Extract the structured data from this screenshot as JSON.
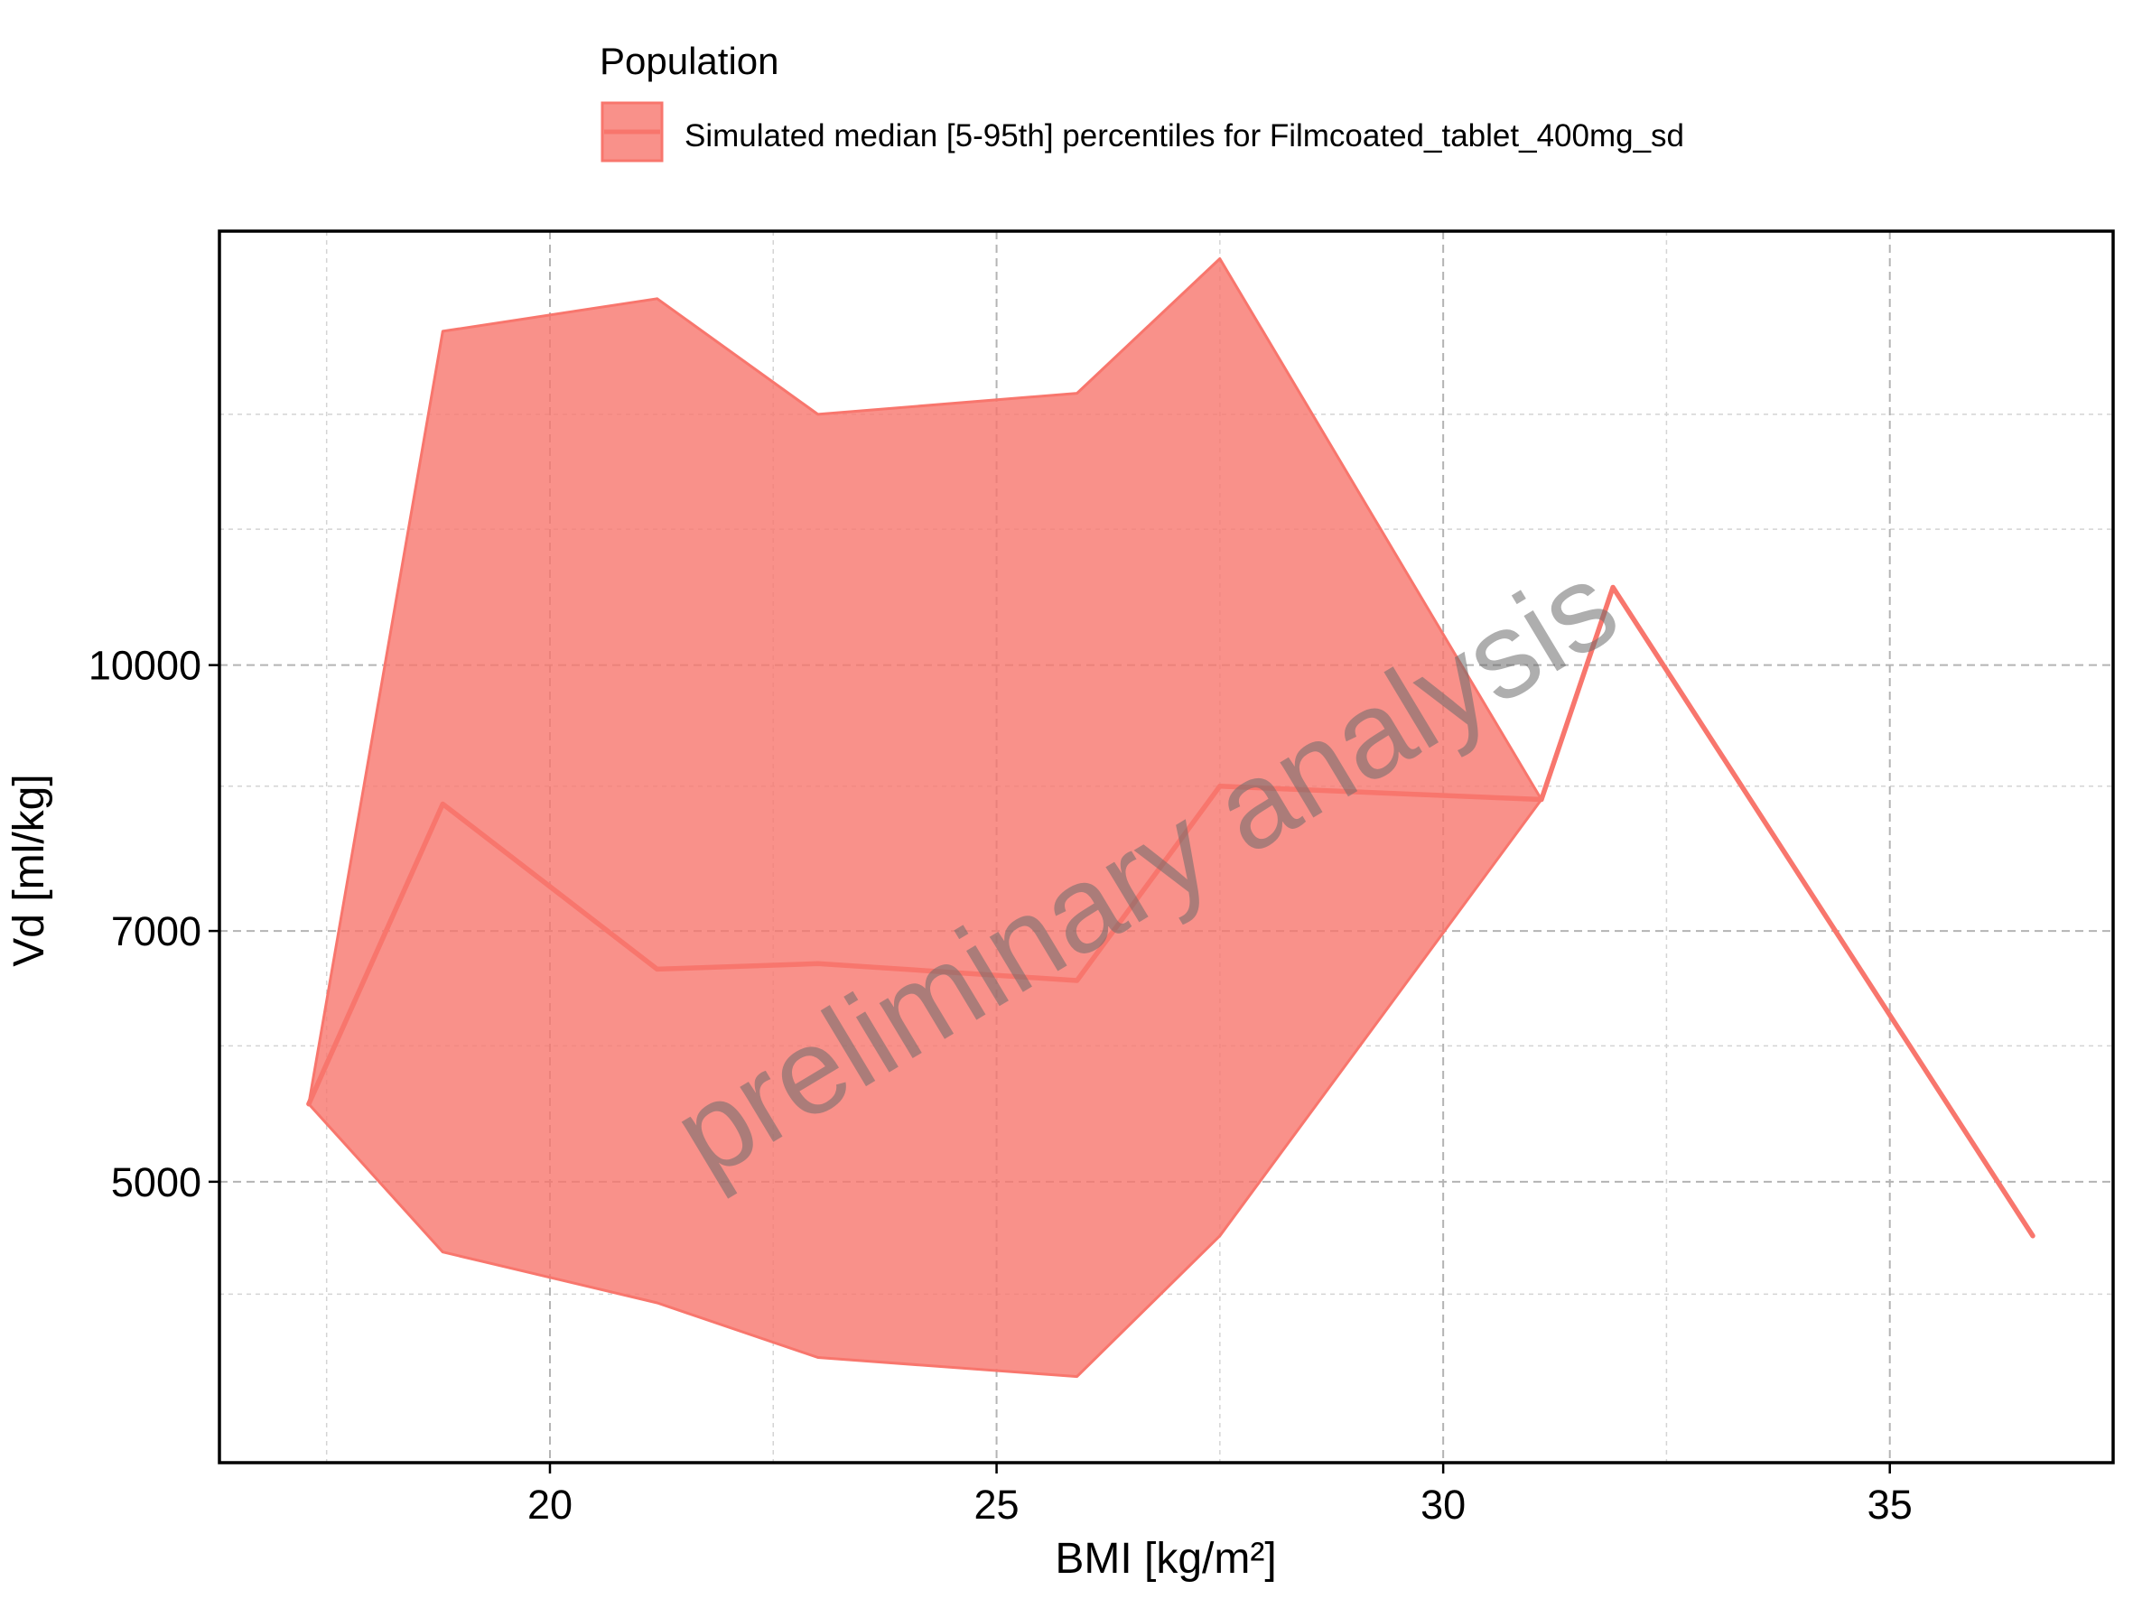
{
  "chart_data": {
    "type": "area",
    "title": "",
    "xlabel": "BMI [kg/m²]",
    "ylabel": "Vd [ml/kg]",
    "xlim": [
      16.3,
      37.5
    ],
    "ylim": [
      3430,
      17900
    ],
    "y_scale": "log",
    "grid": true,
    "x_ticks": [
      20,
      25,
      30,
      35
    ],
    "x_minor_ticks": [
      17.5,
      22.5,
      27.5,
      32.5
    ],
    "y_ticks": [
      5000,
      7000,
      10000
    ],
    "y_minor_ticks": [
      4300,
      6000,
      8500,
      12000,
      14000
    ],
    "legend": {
      "title": "Population",
      "position": "top",
      "entries": [
        "Simulated median [5-95th] percentiles for Filmcoated_tablet_400mg_sd"
      ]
    },
    "series": [
      {
        "name": "Simulated median [5-95th] percentiles for Filmcoated_tablet_400mg_sd",
        "color": "#F8766D",
        "x": [
          17.3,
          18.8,
          21.2,
          23.0,
          25.9,
          27.5,
          31.1,
          31.9,
          36.6
        ],
        "median": [
          5550,
          8300,
          6650,
          6700,
          6550,
          8500,
          8350,
          11100,
          4650
        ],
        "lower": [
          5550,
          4550,
          4250,
          3950,
          3850,
          4650,
          8350,
          11100,
          4650
        ],
        "upper": [
          5550,
          15650,
          16350,
          14000,
          14400,
          17250,
          8350,
          11100,
          4650
        ]
      }
    ],
    "watermark": "preliminary analysis"
  }
}
